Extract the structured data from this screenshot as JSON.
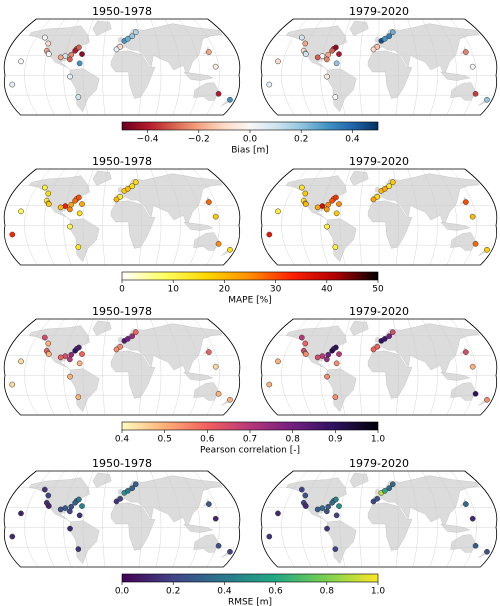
{
  "stations": {
    "lon": [
      -124,
      -122,
      -118,
      -117,
      -74,
      -71,
      -76,
      -81,
      -82,
      -90,
      -97,
      -66,
      -158,
      -170,
      -64,
      4,
      10,
      18,
      -3,
      -70,
      140,
      153,
      145,
      -80,
      -135,
      175,
      -9,
      25
    ],
    "lat": [
      48,
      37,
      33,
      32,
      40,
      42,
      37,
      31,
      24,
      29,
      27,
      18,
      21,
      -14,
      32,
      52,
      55,
      59,
      43,
      -33,
      35,
      -28,
      13,
      -2,
      57,
      -37,
      39,
      65
    ]
  },
  "chart_data": [
    {
      "type": "map",
      "colorbar": {
        "label": "Bias [m]",
        "lim": [
          -0.5,
          0.5
        ],
        "ticks": [
          {
            "value": -0.4,
            "label": "−0.4"
          },
          {
            "value": -0.2,
            "label": "−0.2"
          },
          {
            "value": 0,
            "label": "0.0"
          },
          0.2,
          0.4
        ],
        "colors": [
          "#67001f",
          "#b2182b",
          "#d6604d",
          "#f4a582",
          "#fddbc7",
          "#f7f7f7",
          "#d1e5f0",
          "#92c5de",
          "#4393c3",
          "#2166ac",
          "#053061"
        ]
      },
      "panels": [
        {
          "title": "1950-1978",
          "values": [
            -0.1,
            -0.2,
            0.05,
            0.0,
            -0.35,
            -0.3,
            -0.4,
            -0.25,
            -0.3,
            0.1,
            -0.2,
            0.3,
            0.0,
            0.05,
            -0.45,
            0.3,
            0.25,
            0.2,
            -0.1,
            0.1,
            -0.2,
            -0.4,
            -0.05,
            0.05,
            0.0,
            0.3,
            0.05,
            0.15
          ]
        },
        {
          "title": "1979-2020",
          "values": [
            -0.2,
            -0.1,
            0.05,
            0.1,
            -0.4,
            -0.45,
            -0.3,
            -0.2,
            -0.25,
            0.0,
            -0.3,
            0.2,
            -0.1,
            0.05,
            -0.4,
            0.45,
            0.3,
            0.35,
            -0.15,
            0.0,
            -0.25,
            -0.35,
            0.0,
            -0.05,
            0.1,
            0.2,
            -0.1,
            0.25
          ]
        }
      ]
    },
    {
      "type": "map",
      "colorbar": {
        "label": "MAPE [%]",
        "lim": [
          0,
          50
        ],
        "ticks": [
          0,
          10,
          20,
          30,
          40,
          50
        ],
        "colors": [
          "#ffffff",
          "#ffff60",
          "#ffd700",
          "#ff8c00",
          "#ff2000",
          "#b00000",
          "#000000"
        ]
      },
      "panels": [
        {
          "title": "1950-1978",
          "values": [
            15,
            12,
            20,
            18,
            25,
            30,
            28,
            22,
            26,
            35,
            20,
            15,
            10,
            33,
            22,
            18,
            20,
            15,
            12,
            14,
            28,
            25,
            18,
            10,
            12,
            15,
            20,
            16
          ]
        },
        {
          "title": "1979-2020",
          "values": [
            18,
            14,
            22,
            20,
            28,
            32,
            30,
            25,
            24,
            38,
            22,
            18,
            12,
            36,
            25,
            20,
            22,
            14,
            16,
            12,
            30,
            28,
            20,
            12,
            14,
            18,
            22,
            18
          ]
        }
      ]
    },
    {
      "type": "map",
      "colorbar": {
        "label": "Pearson correlation [-]",
        "lim": [
          0.4,
          1.0
        ],
        "ticks": [
          0.4,
          0.5,
          0.6,
          0.7,
          0.8,
          0.9,
          {
            "value": 1,
            "label": "1.0"
          }
        ],
        "colors": [
          "#fcfdbf",
          "#feb078",
          "#f1605d",
          "#b73779",
          "#721f81",
          "#2c115f",
          "#000004"
        ]
      },
      "panels": [
        {
          "title": "1950-1978",
          "values": [
            0.5,
            0.6,
            0.55,
            0.5,
            0.8,
            0.85,
            0.9,
            0.75,
            0.7,
            0.65,
            0.6,
            0.5,
            0.45,
            0.45,
            0.6,
            0.85,
            0.8,
            0.75,
            0.55,
            0.5,
            0.6,
            0.5,
            0.45,
            0.5,
            0.65,
            0.5,
            0.55,
            0.6
          ]
        },
        {
          "title": "1979-2020",
          "values": [
            0.6,
            0.65,
            0.6,
            0.55,
            0.85,
            0.9,
            0.92,
            0.8,
            0.75,
            0.7,
            0.65,
            0.55,
            0.5,
            0.5,
            0.7,
            0.9,
            0.88,
            0.8,
            0.6,
            0.55,
            0.65,
            0.9,
            0.5,
            0.55,
            0.7,
            0.55,
            0.6,
            0.65
          ]
        }
      ]
    },
    {
      "type": "map",
      "colorbar": {
        "label": "RMSE [m]",
        "lim": [
          0,
          1
        ],
        "ticks": [
          {
            "value": 0,
            "label": "0.0"
          },
          0.2,
          0.4,
          0.6,
          0.8,
          {
            "value": 1,
            "label": "1.0"
          }
        ],
        "colors": [
          "#440154",
          "#414487",
          "#2a788e",
          "#22a884",
          "#7ad151",
          "#fde725"
        ]
      },
      "panels": [
        {
          "title": "1950-1978",
          "values": [
            0.2,
            0.15,
            0.1,
            0.1,
            0.35,
            0.4,
            0.3,
            0.25,
            0.2,
            0.3,
            0.25,
            0.15,
            0.1,
            0.12,
            0.45,
            0.5,
            0.4,
            0.3,
            0.2,
            0.15,
            0.3,
            0.25,
            0.1,
            0.12,
            0.15,
            0.2,
            0.15,
            0.3
          ]
        },
        {
          "title": "1979-2020",
          "values": [
            0.25,
            0.2,
            0.15,
            0.12,
            0.4,
            0.45,
            0.35,
            0.3,
            0.25,
            0.35,
            0.3,
            0.2,
            0.12,
            0.15,
            0.5,
            0.9,
            0.6,
            0.35,
            0.25,
            0.2,
            0.35,
            0.3,
            0.12,
            0.15,
            0.2,
            0.25,
            0.2,
            0.35
          ]
        }
      ]
    }
  ]
}
